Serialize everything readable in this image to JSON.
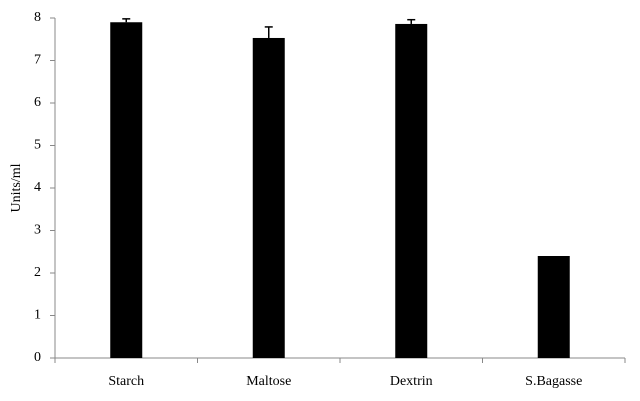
{
  "chart_data": {
    "type": "bar",
    "y_label": "Units/ml",
    "categories": [
      "Starch",
      "Maltose",
      "Dextrin",
      "S.Bagasse"
    ],
    "values": [
      7.9,
      7.53,
      7.86,
      2.4
    ],
    "errors": [
      0.08,
      0.26,
      0.1,
      null
    ],
    "color": "#000000",
    "ylim": [
      0,
      8
    ],
    "yticks": [
      0,
      1,
      2,
      3,
      4,
      5,
      6,
      7,
      8
    ],
    "grid": false
  }
}
